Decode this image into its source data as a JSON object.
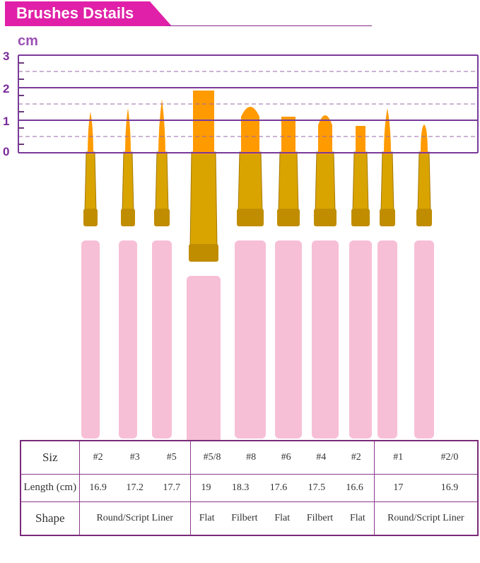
{
  "banner": {
    "title": "Brushes Dstails"
  },
  "ruler": {
    "unit": "cm",
    "ticks": [
      "3",
      "2",
      "1",
      "0"
    ],
    "color": "#7a3a9a"
  },
  "colors": {
    "banner": "#e020a8",
    "bristle": "#ff9a00",
    "ferrule": "#d9a400",
    "handle": "#f7bfd6"
  },
  "table": {
    "size_label": "Siz",
    "length_label": "Length (cm)",
    "shape_label": "Shape",
    "groups": [
      {
        "sizes": [
          "#2",
          "#3",
          "#5"
        ],
        "lengths": [
          "16.9",
          "17.2",
          "17.7"
        ],
        "shapes": [
          "Round/Script Liner"
        ]
      },
      {
        "sizes": [
          "#5/8",
          "#8",
          "#6",
          "#4",
          "#2"
        ],
        "lengths": [
          "19",
          "18.3",
          "17.6",
          "17.5",
          "16.6"
        ],
        "shapes": [
          "Flat",
          "Filbert",
          "Flat",
          "Filbert",
          "Flat"
        ]
      },
      {
        "sizes": [
          "#1",
          "#2/0"
        ],
        "lengths": [
          "17",
          "16.9"
        ],
        "shapes": [
          "Round/Script Liner"
        ]
      }
    ]
  }
}
